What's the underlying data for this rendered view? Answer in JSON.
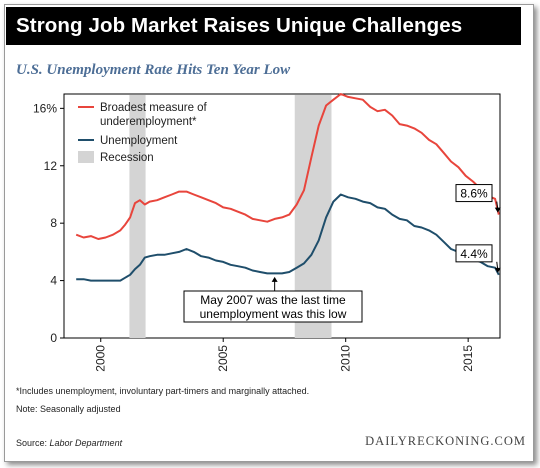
{
  "header": {
    "title": "Strong Job Market Raises Unique Challenges",
    "subtitle": "U.S. Unemployment Rate Hits Ten Year Low"
  },
  "footnotes": {
    "note1": "*Includes unemployment, involuntary part-timers and marginally attached.",
    "note2": "Note: Seasonally adjusted",
    "source_label": "Source: ",
    "source_value": "Labor Department",
    "brand": "DAILYRECKONING.COM"
  },
  "colors": {
    "broad": "#e8453c",
    "unemp": "#1f4e6b",
    "recession": "#d4d4d4",
    "subtitle": "#4d6e96"
  },
  "chart_data": {
    "type": "line",
    "title": "U.S. Unemployment Rate Hits Ten Year Low",
    "xlim": [
      1998.5,
      2016.3
    ],
    "ylim": [
      0,
      17
    ],
    "x_ticks": [
      2000,
      2005,
      2010,
      2015
    ],
    "y_ticks": [
      {
        "value": 0,
        "label": "0"
      },
      {
        "value": 4,
        "label": "4"
      },
      {
        "value": 8,
        "label": "8"
      },
      {
        "value": 12,
        "label": "12"
      },
      {
        "value": 16,
        "label": "16%"
      }
    ],
    "recessions": [
      {
        "start": 2001.17,
        "end": 2001.83
      },
      {
        "start": 2007.92,
        "end": 2009.42
      }
    ],
    "legend": [
      {
        "label": "Broadest measure of underemployment*",
        "kind": "line",
        "color_key": "broad"
      },
      {
        "label": "Unemployment",
        "kind": "line",
        "color_key": "unemp"
      },
      {
        "label": "Recession",
        "kind": "box",
        "color_key": "recession"
      }
    ],
    "series": [
      {
        "name": "Broadest measure of underemployment*",
        "color_key": "broad",
        "x": [
          1999.0,
          1999.3,
          1999.6,
          1999.9,
          2000.2,
          2000.5,
          2000.8,
          2001.0,
          2001.2,
          2001.4,
          2001.6,
          2001.8,
          2002.0,
          2002.3,
          2002.6,
          2002.9,
          2003.2,
          2003.5,
          2003.8,
          2004.1,
          2004.4,
          2004.7,
          2005.0,
          2005.3,
          2005.6,
          2005.9,
          2006.2,
          2006.5,
          2006.8,
          2007.1,
          2007.4,
          2007.7,
          2008.0,
          2008.3,
          2008.6,
          2008.9,
          2009.2,
          2009.5,
          2009.8,
          2010.1,
          2010.4,
          2010.7,
          2011.0,
          2011.3,
          2011.6,
          2011.9,
          2012.2,
          2012.5,
          2012.8,
          2013.1,
          2013.4,
          2013.7,
          2014.0,
          2014.3,
          2014.6,
          2014.9,
          2015.2,
          2015.5,
          2015.8,
          2016.1,
          2016.25
        ],
        "values": [
          7.2,
          7.0,
          7.1,
          6.9,
          7.0,
          7.2,
          7.5,
          7.9,
          8.4,
          9.4,
          9.6,
          9.3,
          9.5,
          9.6,
          9.8,
          10.0,
          10.2,
          10.2,
          10.0,
          9.8,
          9.6,
          9.4,
          9.1,
          9.0,
          8.8,
          8.6,
          8.3,
          8.2,
          8.1,
          8.3,
          8.4,
          8.6,
          9.3,
          10.3,
          12.6,
          14.8,
          16.2,
          16.6,
          17.0,
          16.8,
          16.7,
          16.6,
          16.1,
          15.8,
          15.9,
          15.5,
          14.9,
          14.8,
          14.6,
          14.3,
          13.8,
          13.5,
          12.9,
          12.3,
          11.9,
          11.3,
          10.9,
          10.4,
          9.9,
          9.7,
          8.6
        ]
      },
      {
        "name": "Unemployment",
        "color_key": "unemp",
        "x": [
          1999.0,
          1999.3,
          1999.6,
          1999.9,
          2000.2,
          2000.5,
          2000.8,
          2001.0,
          2001.2,
          2001.4,
          2001.6,
          2001.8,
          2002.0,
          2002.3,
          2002.6,
          2002.9,
          2003.2,
          2003.5,
          2003.8,
          2004.1,
          2004.4,
          2004.7,
          2005.0,
          2005.3,
          2005.6,
          2005.9,
          2006.2,
          2006.5,
          2006.8,
          2007.1,
          2007.4,
          2007.7,
          2008.0,
          2008.3,
          2008.6,
          2008.9,
          2009.2,
          2009.5,
          2009.8,
          2010.1,
          2010.4,
          2010.7,
          2011.0,
          2011.3,
          2011.6,
          2011.9,
          2012.2,
          2012.5,
          2012.8,
          2013.1,
          2013.4,
          2013.7,
          2014.0,
          2014.3,
          2014.6,
          2014.9,
          2015.2,
          2015.5,
          2015.8,
          2016.1,
          2016.25
        ],
        "values": [
          4.1,
          4.1,
          4.0,
          4.0,
          4.0,
          4.0,
          4.0,
          4.2,
          4.4,
          4.8,
          5.1,
          5.6,
          5.7,
          5.8,
          5.8,
          5.9,
          6.0,
          6.2,
          6.0,
          5.7,
          5.6,
          5.4,
          5.3,
          5.1,
          5.0,
          4.9,
          4.7,
          4.6,
          4.5,
          4.5,
          4.5,
          4.6,
          4.9,
          5.2,
          5.8,
          6.8,
          8.4,
          9.5,
          10.0,
          9.8,
          9.7,
          9.5,
          9.4,
          9.1,
          9.0,
          8.6,
          8.3,
          8.2,
          7.8,
          7.7,
          7.5,
          7.2,
          6.7,
          6.2,
          6.0,
          5.7,
          5.5,
          5.3,
          5.0,
          4.9,
          4.4
        ]
      }
    ],
    "callouts": [
      {
        "text": "8.6%",
        "series_index": 0,
        "x": 2016.25,
        "y": 8.6
      },
      {
        "text": "4.4%",
        "series_index": 1,
        "x": 2016.25,
        "y": 4.4
      }
    ],
    "annotation": {
      "line1": "May 2007 was the last time",
      "line2": "unemployment was this low",
      "x": 2007.1,
      "y": 4.4
    }
  }
}
